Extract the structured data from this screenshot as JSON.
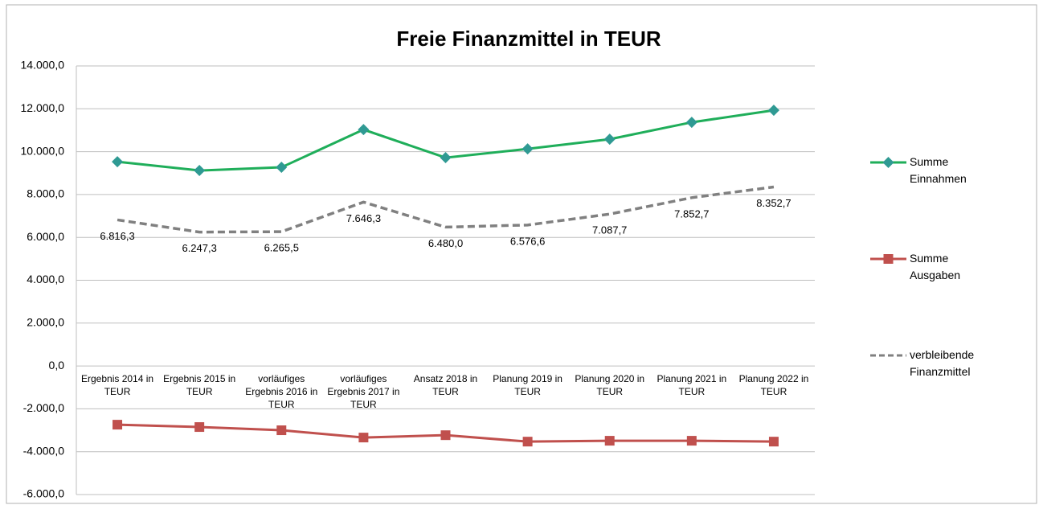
{
  "chart_data": {
    "type": "line",
    "title": "Freie Finanzmittel in TEUR",
    "categories": [
      "Ergebnis 2014 in TEUR",
      "Ergebnis 2015 in TEUR",
      "vorläufiges Ergebnis 2016 in TEUR",
      "vorläufiges Ergebnis 2017 in TEUR",
      "Ansatz 2018 in TEUR",
      "Planung 2019 in TEUR",
      "Planung 2020 in TEUR",
      "Planung 2021 in TEUR",
      "Planung 2022 in TEUR"
    ],
    "series": [
      {
        "name": "Summe Einnahmen",
        "color": "#1fae5a",
        "marker": "diamond",
        "marker_color": "#2f9a93",
        "values": [
          9530,
          9120,
          9270,
          11030,
          9720,
          10130,
          10580,
          11370,
          11930
        ]
      },
      {
        "name": "Summe Ausgaben",
        "color": "#c0504d",
        "marker": "square",
        "marker_color": "#c0504d",
        "values": [
          -2740,
          -2850,
          -3000,
          -3340,
          -3230,
          -3530,
          -3490,
          -3490,
          -3530
        ]
      },
      {
        "name": "verbleibende Finanzmittel",
        "color": "#808080",
        "dashed": true,
        "values": [
          6816.3,
          6247.3,
          6265.5,
          7646.3,
          6480.0,
          6576.6,
          7087.7,
          7852.7,
          8352.7
        ],
        "value_labels": [
          "6.816,3",
          "6.247,3",
          "6.265,5",
          "7.646,3",
          "6.480,0",
          "6.576,6",
          "7.087,7",
          "7.852,7",
          "8.352,7"
        ]
      }
    ],
    "ylim": [
      -6000,
      14000
    ],
    "yticks": [
      {
        "value": -6000,
        "label": "-6.000,0"
      },
      {
        "value": -4000,
        "label": "-4.000,0"
      },
      {
        "value": -2000,
        "label": "-2.000,0"
      },
      {
        "value": 0,
        "label": "0,0"
      },
      {
        "value": 2000,
        "label": "2.000,0"
      },
      {
        "value": 4000,
        "label": "4.000,0"
      },
      {
        "value": 6000,
        "label": "6.000,0"
      },
      {
        "value": 8000,
        "label": "8.000,0"
      },
      {
        "value": 10000,
        "label": "10.000,0"
      },
      {
        "value": 12000,
        "label": "12.000,0"
      },
      {
        "value": 14000,
        "label": "14.000,0"
      }
    ],
    "grid": true,
    "legend": "right"
  }
}
